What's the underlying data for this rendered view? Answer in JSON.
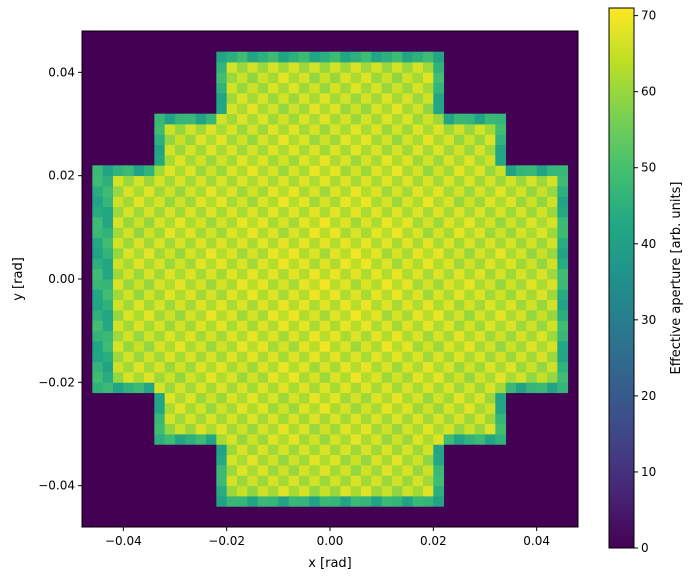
{
  "chart_data": {
    "type": "heatmap",
    "title": "",
    "xlabel": "x [rad]",
    "ylabel": "y [rad]",
    "xlim": [
      -0.048,
      0.048
    ],
    "ylim": [
      -0.048,
      0.048
    ],
    "xticks": [
      -0.04,
      -0.02,
      0.0,
      0.02,
      0.04
    ],
    "xtick_labels": [
      "−0.04",
      "−0.02",
      "0.00",
      "0.02",
      "0.04"
    ],
    "yticks": [
      -0.04,
      -0.02,
      0.0,
      0.02,
      0.04
    ],
    "ytick_labels": [
      "−0.04",
      "−0.02",
      "0.00",
      "0.02",
      "0.04"
    ],
    "colormap": "viridis",
    "background_value": 0,
    "colorbar": {
      "label": "Effective aperture [arb. units]",
      "range": [
        0,
        71
      ],
      "ticks": [
        0,
        10,
        20,
        30,
        40,
        50,
        60,
        70
      ],
      "tick_labels": [
        "0",
        "10",
        "20",
        "30",
        "40",
        "50",
        "60",
        "70"
      ]
    },
    "region": {
      "shape": "stepped cross (union of centered rectangles)",
      "bands": [
        {
          "half_width_x": 0.0225,
          "half_height_y": 0.0435
        },
        {
          "half_width_x": 0.034,
          "half_height_y": 0.032
        },
        {
          "half_width_x": 0.045,
          "half_height_y": 0.0215
        }
      ],
      "plateau_value_range": [
        58,
        68
      ],
      "edge_value": 45,
      "lattice_pitch": 0.002
    },
    "grid": false
  }
}
